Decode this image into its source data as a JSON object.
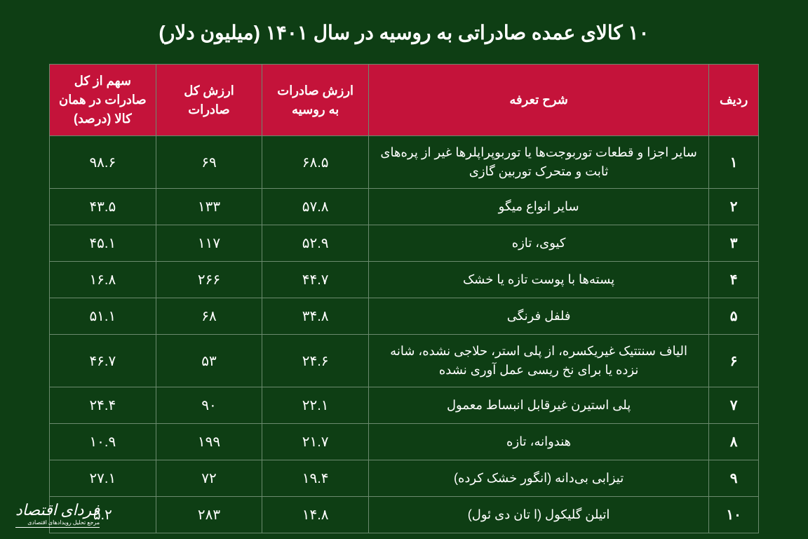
{
  "title": "۱۰ کالای عمده صادراتی به روسیه در سال ۱۴۰۱ (میلیون دلار)",
  "columns": {
    "idx": "ردیف",
    "desc": "شرح تعرفه",
    "val_russia": "ارزش صادرات به روسیه",
    "val_total": "ارزش کل صادرات",
    "share": "سهم از کل صادرات در همان کالا (درصد)"
  },
  "rows": [
    {
      "idx": "۱",
      "desc": "سایر اجزا و قطعات توربوجت‌ها یا توربوپراپلرها غیر از پره‌های ثابت و متحرک توربین گازی",
      "val_russia": "۶۸.۵",
      "val_total": "۶۹",
      "share": "۹۸.۶"
    },
    {
      "idx": "۲",
      "desc": "سایر انواع میگو",
      "val_russia": "۵۷.۸",
      "val_total": "۱۳۳",
      "share": "۴۳.۵"
    },
    {
      "idx": "۳",
      "desc": "کیوی، تازه",
      "val_russia": "۵۲.۹",
      "val_total": "۱۱۷",
      "share": "۴۵.۱"
    },
    {
      "idx": "۴",
      "desc": "پسته‌ها با پوست تازه یا خشک",
      "val_russia": "۴۴.۷",
      "val_total": "۲۶۶",
      "share": "۱۶.۸"
    },
    {
      "idx": "۵",
      "desc": "فلفل فرنگی",
      "val_russia": "۳۴.۸",
      "val_total": "۶۸",
      "share": "۵۱.۱"
    },
    {
      "idx": "۶",
      "desc": "الیاف سنتتیک غیریکسره، از پلی استر، حلاجی نشده، شانه نزده یا برای نخ ریسی عمل آوری نشده",
      "val_russia": "۲۴.۶",
      "val_total": "۵۳",
      "share": "۴۶.۷"
    },
    {
      "idx": "۷",
      "desc": "پلی استیرن غیرقابل انبساط معمول",
      "val_russia": "۲۲.۱",
      "val_total": "۹۰",
      "share": "۲۴.۴"
    },
    {
      "idx": "۸",
      "desc": "هندوانه، تازه",
      "val_russia": "۲۱.۷",
      "val_total": "۱۹۹",
      "share": "۱۰.۹"
    },
    {
      "idx": "۹",
      "desc": "تیزابی بی‌دانه (انگور خشک کرده)",
      "val_russia": "۱۹.۴",
      "val_total": "۷۲",
      "share": "۲۷.۱"
    },
    {
      "idx": "۱۰",
      "desc": "اتیلن گلیکول (ا تان دی ئول)",
      "val_russia": "۱۴.۸",
      "val_total": "۲۸۳",
      "share": "۵.۲"
    }
  ],
  "logo": {
    "main": "فردای اقتصاد",
    "sub": "مرجع تحلیل رویدادهای اقتصادی"
  },
  "style": {
    "type": "table",
    "background_color": "#0e3e14",
    "header_bg": "#c4133a",
    "border_color": "#6b8a6e",
    "text_color": "#ffffff",
    "title_fontsize": 28,
    "header_fontsize": 18,
    "cell_fontsize": 20,
    "cols": 5,
    "rows_count": 10
  }
}
